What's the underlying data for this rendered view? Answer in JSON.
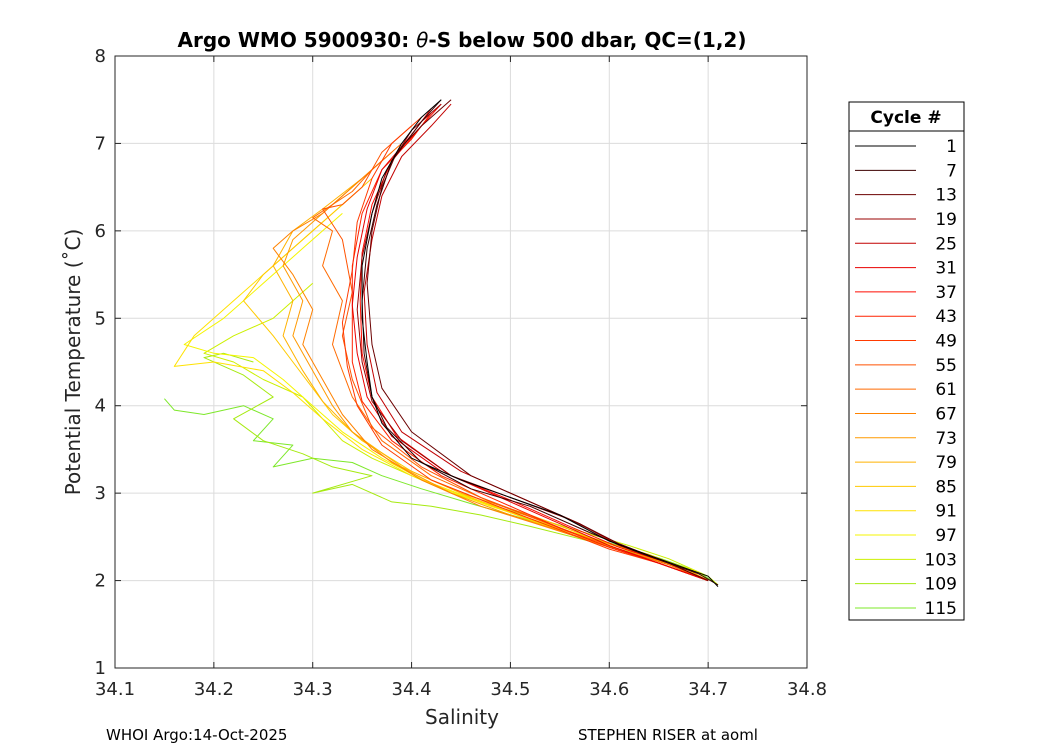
{
  "chart_data": {
    "type": "line",
    "title_prefix": "Argo WMO 5900930: ",
    "title_theta": "θ",
    "title_suffix": "-S below 500 dbar,  QC=(1,2)",
    "xlabel": "Salinity",
    "ylabel": "Potential Temperature (˚C)",
    "xlim": [
      34.1,
      34.8
    ],
    "ylim": [
      1,
      8
    ],
    "xticks": [
      "34.1",
      "34.2",
      "34.3",
      "34.4",
      "34.5",
      "34.6",
      "34.7",
      "34.8"
    ],
    "yticks": [
      "1",
      "2",
      "3",
      "4",
      "5",
      "6",
      "7",
      "8"
    ],
    "grid": true,
    "legend": {
      "title": "Cycle #",
      "position": "outside-right",
      "entries": [
        {
          "label": "1",
          "color": "#000000"
        },
        {
          "label": "7",
          "color": "#3d0000"
        },
        {
          "label": "13",
          "color": "#6b0000"
        },
        {
          "label": "19",
          "color": "#990000"
        },
        {
          "label": "25",
          "color": "#c20000"
        },
        {
          "label": "31",
          "color": "#e80000"
        },
        {
          "label": "37",
          "color": "#ff0b00"
        },
        {
          "label": "43",
          "color": "#ff2200"
        },
        {
          "label": "49",
          "color": "#ff3a00"
        },
        {
          "label": "55",
          "color": "#ff5200"
        },
        {
          "label": "61",
          "color": "#ff6a00"
        },
        {
          "label": "67",
          "color": "#ff8200"
        },
        {
          "label": "73",
          "color": "#ff9a00"
        },
        {
          "label": "79",
          "color": "#ffb200"
        },
        {
          "label": "85",
          "color": "#ffca00"
        },
        {
          "label": "91",
          "color": "#ffe200"
        },
        {
          "label": "97",
          "color": "#f5f500"
        },
        {
          "label": "103",
          "color": "#ccf000"
        },
        {
          "label": "109",
          "color": "#a6ea10"
        },
        {
          "label": "115",
          "color": "#7de82a"
        }
      ]
    },
    "series": [
      {
        "name": "1",
        "color": "#000000",
        "x": [
          34.43,
          34.41,
          34.39,
          34.37,
          34.36,
          34.35,
          34.35,
          34.355,
          34.36,
          34.37,
          34.4,
          34.45,
          34.5,
          34.55,
          34.6,
          34.65,
          34.7,
          34.71
        ],
        "y": [
          7.5,
          7.3,
          7.0,
          6.6,
          6.2,
          5.6,
          5.0,
          4.5,
          4.1,
          3.8,
          3.4,
          3.15,
          2.95,
          2.75,
          2.45,
          2.25,
          2.05,
          1.93
        ]
      },
      {
        "name": "7",
        "color": "#3d0000",
        "x": [
          34.43,
          34.41,
          34.38,
          34.365,
          34.355,
          34.35,
          34.352,
          34.36,
          34.375,
          34.41,
          34.46,
          34.52,
          34.58,
          34.63,
          34.69,
          34.71
        ],
        "y": [
          7.5,
          7.25,
          6.8,
          6.3,
          5.8,
          5.2,
          4.6,
          4.1,
          3.75,
          3.35,
          3.05,
          2.85,
          2.55,
          2.32,
          2.08,
          1.95
        ]
      },
      {
        "name": "13",
        "color": "#6b0000",
        "x": [
          34.44,
          34.41,
          34.385,
          34.37,
          34.36,
          34.355,
          34.36,
          34.37,
          34.4,
          34.46,
          34.52,
          34.57,
          34.61,
          34.66,
          34.7
        ],
        "y": [
          7.5,
          7.2,
          6.9,
          6.5,
          6.0,
          5.4,
          4.7,
          4.2,
          3.7,
          3.2,
          2.9,
          2.65,
          2.42,
          2.2,
          2.0
        ]
      },
      {
        "name": "19",
        "color": "#990000",
        "x": [
          34.43,
          34.4,
          34.375,
          34.36,
          34.35,
          34.345,
          34.35,
          34.36,
          34.39,
          34.44,
          34.5,
          34.56,
          34.61,
          34.66,
          34.7
        ],
        "y": [
          7.45,
          7.15,
          6.7,
          6.2,
          5.7,
          5.1,
          4.5,
          4.05,
          3.6,
          3.2,
          2.95,
          2.7,
          2.42,
          2.2,
          2.0
        ]
      },
      {
        "name": "25",
        "color": "#c20000",
        "x": [
          34.44,
          34.42,
          34.39,
          34.37,
          34.36,
          34.352,
          34.355,
          34.365,
          34.39,
          34.45,
          34.51,
          34.57,
          34.61,
          34.66,
          34.7
        ],
        "y": [
          7.45,
          7.2,
          6.85,
          6.4,
          5.9,
          5.3,
          4.7,
          4.15,
          3.7,
          3.25,
          2.95,
          2.65,
          2.4,
          2.2,
          2.0
        ]
      },
      {
        "name": "31",
        "color": "#e80000",
        "x": [
          34.42,
          34.4,
          34.37,
          34.355,
          34.345,
          34.34,
          34.345,
          34.355,
          34.38,
          34.43,
          34.49,
          34.55,
          34.6,
          34.65,
          34.7
        ],
        "y": [
          7.4,
          7.1,
          6.7,
          6.25,
          5.7,
          5.15,
          4.6,
          4.1,
          3.65,
          3.25,
          2.95,
          2.65,
          2.4,
          2.2,
          2.0
        ]
      },
      {
        "name": "37",
        "color": "#ff0b00",
        "x": [
          34.43,
          34.41,
          34.38,
          34.36,
          34.35,
          34.348,
          34.35,
          34.36,
          34.385,
          34.44,
          34.5,
          34.56,
          34.61,
          34.66,
          34.7
        ],
        "y": [
          7.45,
          7.2,
          6.8,
          6.3,
          5.75,
          5.2,
          4.6,
          4.1,
          3.65,
          3.2,
          2.92,
          2.62,
          2.38,
          2.2,
          2.0
        ]
      },
      {
        "name": "43",
        "color": "#ff2200",
        "x": [
          34.42,
          34.4,
          34.37,
          34.35,
          34.34,
          34.34,
          34.34,
          34.35,
          34.38,
          34.43,
          34.49,
          34.55,
          34.6,
          34.65,
          34.7
        ],
        "y": [
          7.35,
          7.05,
          6.7,
          6.2,
          5.6,
          5.0,
          4.5,
          4.05,
          3.6,
          3.2,
          2.9,
          2.6,
          2.38,
          2.2,
          2.0
        ]
      },
      {
        "name": "49",
        "color": "#ff3a00",
        "x": [
          34.41,
          34.38,
          34.36,
          34.345,
          34.34,
          34.33,
          34.335,
          34.345,
          34.37,
          34.42,
          34.48,
          34.55,
          34.6,
          34.65,
          34.7
        ],
        "y": [
          7.3,
          7.0,
          6.6,
          6.1,
          5.55,
          4.95,
          4.45,
          4.0,
          3.55,
          3.15,
          2.88,
          2.58,
          2.36,
          2.2,
          2.0
        ]
      },
      {
        "name": "55",
        "color": "#ff5200",
        "x": [
          34.4,
          34.37,
          34.35,
          34.33,
          34.31,
          34.33,
          34.34,
          34.33,
          34.34,
          34.36,
          34.41,
          34.47,
          34.54,
          34.6,
          34.65,
          34.7
        ],
        "y": [
          7.2,
          6.9,
          6.5,
          6.3,
          6.25,
          5.9,
          5.3,
          4.8,
          4.3,
          3.75,
          3.3,
          2.95,
          2.65,
          2.38,
          2.2,
          2.0
        ]
      },
      {
        "name": "61",
        "color": "#ff6a00",
        "x": [
          34.39,
          34.36,
          34.34,
          34.32,
          34.3,
          34.32,
          34.31,
          34.33,
          34.32,
          34.34,
          34.37,
          34.42,
          34.48,
          34.55,
          34.61,
          34.66,
          34.7
        ],
        "y": [
          7.0,
          6.7,
          6.45,
          6.3,
          6.15,
          6.0,
          5.6,
          5.2,
          4.7,
          4.1,
          3.6,
          3.2,
          2.9,
          2.6,
          2.36,
          2.18,
          2.0
        ]
      },
      {
        "name": "67",
        "color": "#ff8200",
        "x": [
          34.37,
          34.34,
          34.31,
          34.28,
          34.26,
          34.28,
          34.3,
          34.29,
          34.31,
          34.33,
          34.36,
          34.41,
          34.47,
          34.54,
          34.6,
          34.65,
          34.7
        ],
        "y": [
          6.8,
          6.5,
          6.2,
          6.0,
          5.8,
          5.5,
          5.1,
          4.7,
          4.3,
          3.9,
          3.5,
          3.15,
          2.85,
          2.6,
          2.38,
          2.2,
          2.0
        ]
      },
      {
        "name": "73",
        "color": "#ff9a00",
        "x": [
          34.36,
          34.33,
          34.3,
          34.28,
          34.27,
          34.29,
          34.28,
          34.3,
          34.32,
          34.34,
          34.38,
          34.44,
          34.5,
          34.57,
          34.62,
          34.67,
          34.7
        ],
        "y": [
          6.7,
          6.4,
          6.1,
          5.9,
          5.6,
          5.2,
          4.8,
          4.4,
          4.0,
          3.7,
          3.35,
          3.0,
          2.75,
          2.5,
          2.32,
          2.15,
          2.0
        ]
      },
      {
        "name": "79",
        "color": "#ffb200",
        "x": [
          34.38,
          34.35,
          34.31,
          34.28,
          34.26,
          34.28,
          34.27,
          34.29,
          34.31,
          34.34,
          34.39,
          34.45,
          34.52,
          34.58,
          34.63,
          34.68,
          34.7
        ],
        "y": [
          6.9,
          6.6,
          6.25,
          6.0,
          5.6,
          5.2,
          4.8,
          4.4,
          4.05,
          3.7,
          3.3,
          3.0,
          2.75,
          2.5,
          2.3,
          2.12,
          2.0
        ]
      },
      {
        "name": "85",
        "color": "#ffca00",
        "x": [
          34.36,
          34.32,
          34.28,
          34.25,
          34.23,
          34.26,
          34.28,
          34.3,
          34.32,
          34.35,
          34.4,
          34.46,
          34.52,
          34.58,
          34.64,
          34.68,
          34.7
        ],
        "y": [
          6.6,
          6.2,
          5.8,
          5.5,
          5.2,
          4.8,
          4.5,
          4.2,
          3.9,
          3.6,
          3.25,
          2.95,
          2.7,
          2.48,
          2.3,
          2.12,
          2.0
        ]
      },
      {
        "name": "91",
        "color": "#ffe200",
        "x": [
          34.34,
          34.3,
          34.26,
          34.22,
          34.18,
          34.16,
          34.2,
          34.25,
          34.28,
          34.31,
          34.35,
          34.4,
          34.47,
          34.53,
          34.59,
          34.64,
          34.68,
          34.7
        ],
        "y": [
          6.4,
          6.0,
          5.6,
          5.2,
          4.8,
          4.45,
          4.5,
          4.4,
          4.15,
          3.85,
          3.5,
          3.2,
          2.9,
          2.65,
          2.45,
          2.28,
          2.12,
          2.0
        ]
      },
      {
        "name": "97",
        "color": "#f5f500",
        "x": [
          34.33,
          34.29,
          34.25,
          34.21,
          34.17,
          34.2,
          34.24,
          34.27,
          34.3,
          34.33,
          34.37,
          34.42,
          34.48,
          34.55,
          34.6,
          34.65,
          34.69,
          34.7
        ],
        "y": [
          6.2,
          5.8,
          5.4,
          5.0,
          4.7,
          4.6,
          4.55,
          4.3,
          4.0,
          3.7,
          3.4,
          3.1,
          2.85,
          2.6,
          2.42,
          2.25,
          2.1,
          2.0
        ]
      },
      {
        "name": "103",
        "color": "#ccf000",
        "x": [
          34.3,
          34.26,
          34.22,
          34.19,
          34.22,
          34.25,
          34.29,
          34.31,
          34.33,
          34.36,
          34.4,
          34.44,
          34.5,
          34.56,
          34.62,
          34.66,
          34.7,
          34.71
        ],
        "y": [
          5.4,
          5.0,
          4.8,
          4.6,
          4.5,
          4.3,
          4.1,
          3.85,
          3.6,
          3.4,
          3.2,
          3.0,
          2.8,
          2.6,
          2.4,
          2.25,
          2.05,
          1.95
        ]
      },
      {
        "name": "109",
        "color": "#a6ea10",
        "x": [
          34.24,
          34.21,
          34.19,
          34.23,
          34.26,
          34.22,
          34.25,
          34.29,
          34.32,
          34.36,
          34.3,
          34.34,
          34.38,
          34.42,
          34.47,
          34.52,
          34.58,
          34.63,
          34.67,
          34.7
        ],
        "y": [
          4.5,
          4.6,
          4.55,
          4.35,
          4.1,
          3.85,
          3.6,
          3.45,
          3.3,
          3.2,
          3.0,
          3.1,
          2.9,
          2.85,
          2.75,
          2.62,
          2.45,
          2.3,
          2.15,
          2.0
        ]
      },
      {
        "name": "115",
        "color": "#7de82a",
        "x": [
          34.15,
          34.16,
          34.19,
          34.23,
          34.26,
          34.24,
          34.28,
          34.26,
          34.3,
          34.34,
          34.37,
          34.41,
          34.46,
          34.51,
          34.56,
          34.61,
          34.65,
          34.69,
          34.71
        ],
        "y": [
          4.08,
          3.95,
          3.9,
          4.0,
          3.85,
          3.6,
          3.55,
          3.3,
          3.4,
          3.35,
          3.2,
          3.05,
          2.88,
          2.72,
          2.56,
          2.4,
          2.26,
          2.1,
          1.95
        ]
      }
    ]
  },
  "footer": {
    "left": "WHOI Argo:14-Oct-2025",
    "right": "STEPHEN RISER at aoml"
  }
}
